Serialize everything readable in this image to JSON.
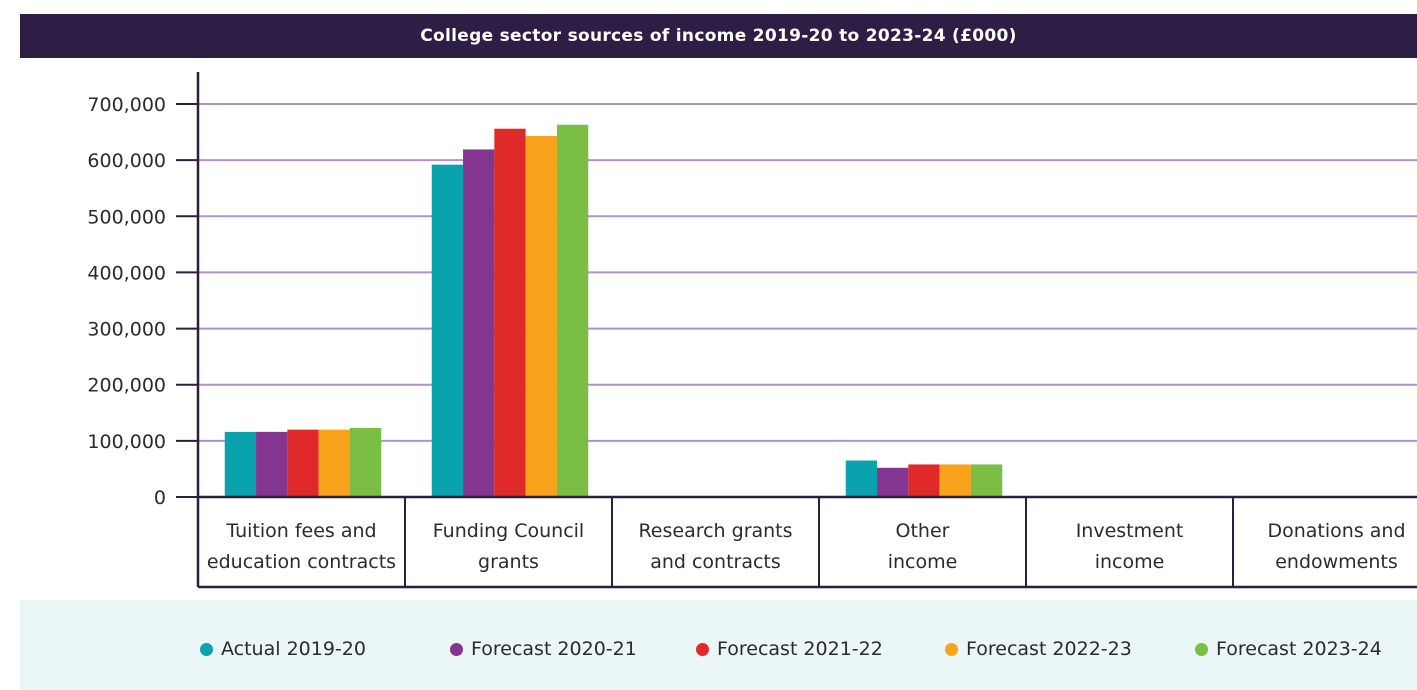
{
  "chart_data": {
    "type": "bar",
    "title": "College sector sources of income 2019-20 to 2023-24 (£000)",
    "categories": [
      [
        "Tuition fees and",
        "education contracts"
      ],
      [
        "Funding Council",
        "grants"
      ],
      [
        "Research grants",
        "and contracts"
      ],
      [
        "Other",
        "income"
      ],
      [
        "Investment",
        "income"
      ],
      [
        "Donations and",
        "endowments"
      ]
    ],
    "series": [
      {
        "name": "Actual 2019-20",
        "color": "#0aa3ad",
        "values": [
          116000,
          592000,
          0,
          65000,
          0,
          0
        ]
      },
      {
        "name": "Forecast 2020-21",
        "color": "#84358f",
        "values": [
          116000,
          619000,
          0,
          52000,
          0,
          0
        ]
      },
      {
        "name": "Forecast 2021-22",
        "color": "#e02a2a",
        "values": [
          120000,
          656000,
          0,
          58000,
          0,
          0
        ]
      },
      {
        "name": "Forecast 2022-23",
        "color": "#f9a21b",
        "values": [
          120000,
          643000,
          0,
          58000,
          0,
          0
        ]
      },
      {
        "name": "Forecast 2023-24",
        "color": "#7abe43",
        "values": [
          123000,
          663000,
          0,
          58000,
          0,
          0
        ]
      }
    ],
    "ylim": [
      0,
      700000
    ],
    "yticks": [
      0,
      100000,
      200000,
      300000,
      400000,
      500000,
      600000,
      700000
    ],
    "ytick_labels": [
      "0",
      "100,000",
      "200,000",
      "300,000",
      "400,000",
      "500,000",
      "600,000",
      "700,000"
    ],
    "grid": true,
    "gridline_color": "#b48fcf",
    "legend_position": "bottom"
  }
}
